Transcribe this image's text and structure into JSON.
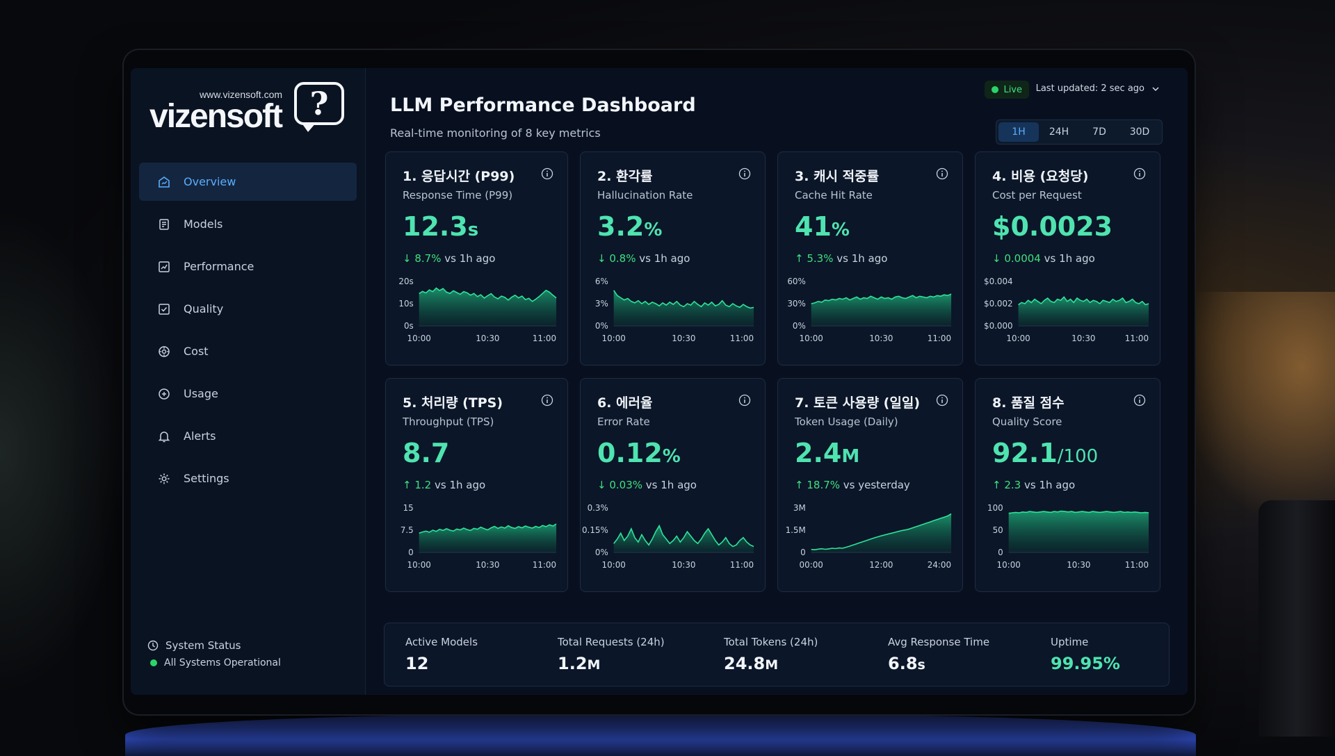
{
  "brand": {
    "url": "www.vizensoft.com",
    "name": "vizensoft",
    "mark": "?"
  },
  "sidebar": {
    "items": [
      {
        "label": "Overview",
        "icon": "home-chart-icon",
        "active": true
      },
      {
        "label": "Models",
        "icon": "models-icon",
        "active": false
      },
      {
        "label": "Performance",
        "icon": "performance-icon",
        "active": false
      },
      {
        "label": "Quality",
        "icon": "quality-icon",
        "active": false
      },
      {
        "label": "Cost",
        "icon": "cost-icon",
        "active": false
      },
      {
        "label": "Usage",
        "icon": "usage-icon",
        "active": false
      },
      {
        "label": "Alerts",
        "icon": "bell-icon",
        "active": false
      },
      {
        "label": "Settings",
        "icon": "gear-icon",
        "active": false
      }
    ],
    "status_label": "System Status",
    "status_value": "All Systems Operational"
  },
  "header": {
    "title": "LLM Performance Dashboard",
    "subtitle": "Real-time monitoring of 8 key metrics",
    "live": "Live",
    "last_updated": "Last updated: 2 sec ago",
    "ranges": [
      "1H",
      "24H",
      "7D",
      "30D"
    ],
    "active_range": "1H"
  },
  "colors": {
    "accent": "#4fe3b0",
    "positive": "#3fe07f",
    "link": "#5aaeff",
    "chart_line": "#2ee39a"
  },
  "cards": [
    {
      "title": "1. 응답시간 (P99)",
      "subtitle": "Response Time (P99)",
      "value": "12.3",
      "unit": "s",
      "arrow": "↓",
      "delta": "8.7%",
      "delta_suffix": "vs 1h ago",
      "chart_data": {
        "type": "area",
        "y_ticks": [
          "20s",
          "10s",
          "0s"
        ],
        "x_ticks": [
          "10:00",
          "10:30",
          "11:00"
        ],
        "ylim": [
          0,
          20
        ],
        "values": [
          14.5,
          15.5,
          14.8,
          16.2,
          15.4,
          17.0,
          15.9,
          16.8,
          15.2,
          14.6,
          15.8,
          15.0,
          14.2,
          15.4,
          14.9,
          13.8,
          14.6,
          13.2,
          14.0,
          12.5,
          13.6,
          14.5,
          13.0,
          12.2,
          13.4,
          12.8,
          11.6,
          12.9,
          13.8,
          12.6,
          13.4,
          11.8,
          12.4,
          11.0,
          12.0,
          13.2,
          14.6,
          16.0,
          15.2,
          13.8,
          12.6
        ]
      }
    },
    {
      "title": "2. 환각률",
      "subtitle": "Hallucination Rate",
      "value": "3.2",
      "unit": "%",
      "arrow": "↓",
      "delta": "0.8%",
      "delta_suffix": "vs 1h ago",
      "chart_data": {
        "type": "area",
        "y_ticks": [
          "6%",
          "3%",
          "0%"
        ],
        "x_ticks": [
          "10:00",
          "10:30",
          "11:00"
        ],
        "ylim": [
          0,
          6
        ],
        "values": [
          4.8,
          4.1,
          3.8,
          3.5,
          3.7,
          3.3,
          3.1,
          3.4,
          3.0,
          3.3,
          2.9,
          3.2,
          3.0,
          2.7,
          3.1,
          2.8,
          3.2,
          2.9,
          3.3,
          2.8,
          2.6,
          3.0,
          2.8,
          3.3,
          2.9,
          2.6,
          3.1,
          2.8,
          3.2,
          2.7,
          2.9,
          3.4,
          2.8,
          2.6,
          3.0,
          2.7,
          2.5,
          2.9,
          2.6,
          2.4,
          2.5
        ]
      }
    },
    {
      "title": "3. 캐시 적중률",
      "subtitle": "Cache Hit Rate",
      "value": "41",
      "unit": "%",
      "arrow": "↑",
      "delta": "5.3%",
      "delta_suffix": "vs 1h ago",
      "chart_data": {
        "type": "area",
        "y_ticks": [
          "60%",
          "30%",
          "0%"
        ],
        "x_ticks": [
          "10:00",
          "10:30",
          "11:00"
        ],
        "ylim": [
          0,
          60
        ],
        "values": [
          30,
          31,
          33,
          32,
          35,
          34,
          36,
          35,
          37,
          36,
          38,
          35,
          37,
          39,
          36,
          38,
          37,
          40,
          38,
          36,
          39,
          37,
          38,
          36,
          39,
          40,
          38,
          37,
          39,
          41,
          38,
          40,
          39,
          38,
          40,
          39,
          41,
          40,
          42,
          41,
          43
        ]
      }
    },
    {
      "title": "4. 비용 (요청당)",
      "subtitle": "Cost per Request",
      "value": "$0.0023",
      "unit": "",
      "arrow": "↓",
      "delta": "0.0004",
      "delta_suffix": "vs 1h ago",
      "chart_data": {
        "type": "area",
        "y_ticks": [
          "$0.004",
          "$0.002",
          "$0.000"
        ],
        "x_ticks": [
          "10:00",
          "10:30",
          "11:00"
        ],
        "ylim": [
          0,
          0.004
        ],
        "values": [
          0.0019,
          0.0021,
          0.002,
          0.0023,
          0.0021,
          0.0024,
          0.0022,
          0.002,
          0.0023,
          0.0025,
          0.0022,
          0.0021,
          0.0024,
          0.0023,
          0.0026,
          0.0022,
          0.0024,
          0.0021,
          0.0025,
          0.0023,
          0.0022,
          0.0024,
          0.0021,
          0.0023,
          0.0022,
          0.002,
          0.0023,
          0.0022,
          0.0021,
          0.0024,
          0.0022,
          0.0023,
          0.0025,
          0.0021,
          0.0022,
          0.0024,
          0.0021,
          0.002,
          0.0022,
          0.0019,
          0.002
        ]
      }
    },
    {
      "title": "5. 처리량 (TPS)",
      "subtitle": "Throughput (TPS)",
      "value": "8.7",
      "unit": "",
      "arrow": "↑",
      "delta": "1.2",
      "delta_suffix": "vs 1h ago",
      "chart_data": {
        "type": "area",
        "y_ticks": [
          "15",
          "7.5",
          "0"
        ],
        "x_ticks": [
          "10:00",
          "10:30",
          "11:00"
        ],
        "ylim": [
          0,
          15
        ],
        "values": [
          6.5,
          6.9,
          7.2,
          6.8,
          7.5,
          7.1,
          7.8,
          7.4,
          8.0,
          7.5,
          7.2,
          7.9,
          7.6,
          8.2,
          7.7,
          7.4,
          8.1,
          7.8,
          8.5,
          8.0,
          7.6,
          8.3,
          8.8,
          8.1,
          8.6,
          8.2,
          9.0,
          8.4,
          8.1,
          8.7,
          8.3,
          8.9,
          8.5,
          8.2,
          8.8,
          8.4,
          9.1,
          8.7,
          9.3,
          8.9,
          9.6
        ]
      }
    },
    {
      "title": "6. 에러율",
      "subtitle": "Error Rate",
      "value": "0.12",
      "unit": "%",
      "arrow": "↓",
      "delta": "0.03%",
      "delta_suffix": "vs 1h ago",
      "chart_data": {
        "type": "area",
        "y_ticks": [
          "0.3%",
          "0.15%",
          "0%"
        ],
        "x_ticks": [
          "10:00",
          "10:30",
          "11:00"
        ],
        "ylim": [
          0,
          0.3
        ],
        "values": [
          0.06,
          0.09,
          0.13,
          0.08,
          0.11,
          0.16,
          0.1,
          0.07,
          0.12,
          0.08,
          0.05,
          0.09,
          0.14,
          0.18,
          0.12,
          0.09,
          0.06,
          0.08,
          0.11,
          0.07,
          0.1,
          0.14,
          0.11,
          0.08,
          0.06,
          0.09,
          0.13,
          0.16,
          0.12,
          0.08,
          0.05,
          0.07,
          0.1,
          0.06,
          0.04,
          0.05,
          0.08,
          0.1,
          0.07,
          0.05,
          0.04
        ]
      }
    },
    {
      "title": "7. 토큰 사용량 (일일)",
      "subtitle": "Token Usage (Daily)",
      "value": "2.4",
      "unit": "M",
      "arrow": "↑",
      "delta": "18.7%",
      "delta_suffix": "vs yesterday",
      "chart_data": {
        "type": "area",
        "y_ticks": [
          "3M",
          "1.5M",
          "0"
        ],
        "x_ticks": [
          "00:00",
          "12:00",
          "24:00"
        ],
        "ylim": [
          0,
          3
        ],
        "values": [
          0.2,
          0.18,
          0.22,
          0.25,
          0.21,
          0.24,
          0.28,
          0.26,
          0.3,
          0.28,
          0.35,
          0.42,
          0.5,
          0.58,
          0.66,
          0.74,
          0.82,
          0.9,
          0.98,
          1.05,
          1.12,
          1.18,
          1.24,
          1.3,
          1.36,
          1.42,
          1.48,
          1.52,
          1.58,
          1.66,
          1.74,
          1.82,
          1.9,
          1.98,
          2.06,
          2.14,
          2.22,
          2.3,
          2.38,
          2.46,
          2.6
        ]
      }
    },
    {
      "title": "8. 품질 점수",
      "subtitle": "Quality Score",
      "value": "92.1",
      "unit": "/100",
      "arrow": "↑",
      "delta": "2.3",
      "delta_suffix": "vs 1h ago",
      "chart_data": {
        "type": "area",
        "y_ticks": [
          "100",
          "50",
          "0"
        ],
        "x_ticks": [
          "10:00",
          "10:30",
          "11:00"
        ],
        "ylim": [
          0,
          100
        ],
        "values": [
          88,
          89,
          90,
          89,
          91,
          90,
          92,
          91,
          90,
          91,
          92,
          91,
          90,
          92,
          91,
          93,
          92,
          91,
          92,
          90,
          91,
          92,
          91,
          90,
          92,
          91,
          90,
          91,
          92,
          91,
          90,
          91,
          92,
          90,
          91,
          90,
          91,
          90,
          89,
          90,
          89
        ]
      }
    }
  ],
  "summary": [
    {
      "label": "Active Models",
      "value": "12",
      "unit": "",
      "green": false
    },
    {
      "label": "Total Requests (24h)",
      "value": "1.2",
      "unit": "M",
      "green": false
    },
    {
      "label": "Total Tokens (24h)",
      "value": "24.8",
      "unit": "M",
      "green": false
    },
    {
      "label": "Avg Response Time",
      "value": "6.8",
      "unit": "s",
      "green": false
    },
    {
      "label": "Uptime",
      "value": "99.95%",
      "unit": "",
      "green": true
    }
  ]
}
